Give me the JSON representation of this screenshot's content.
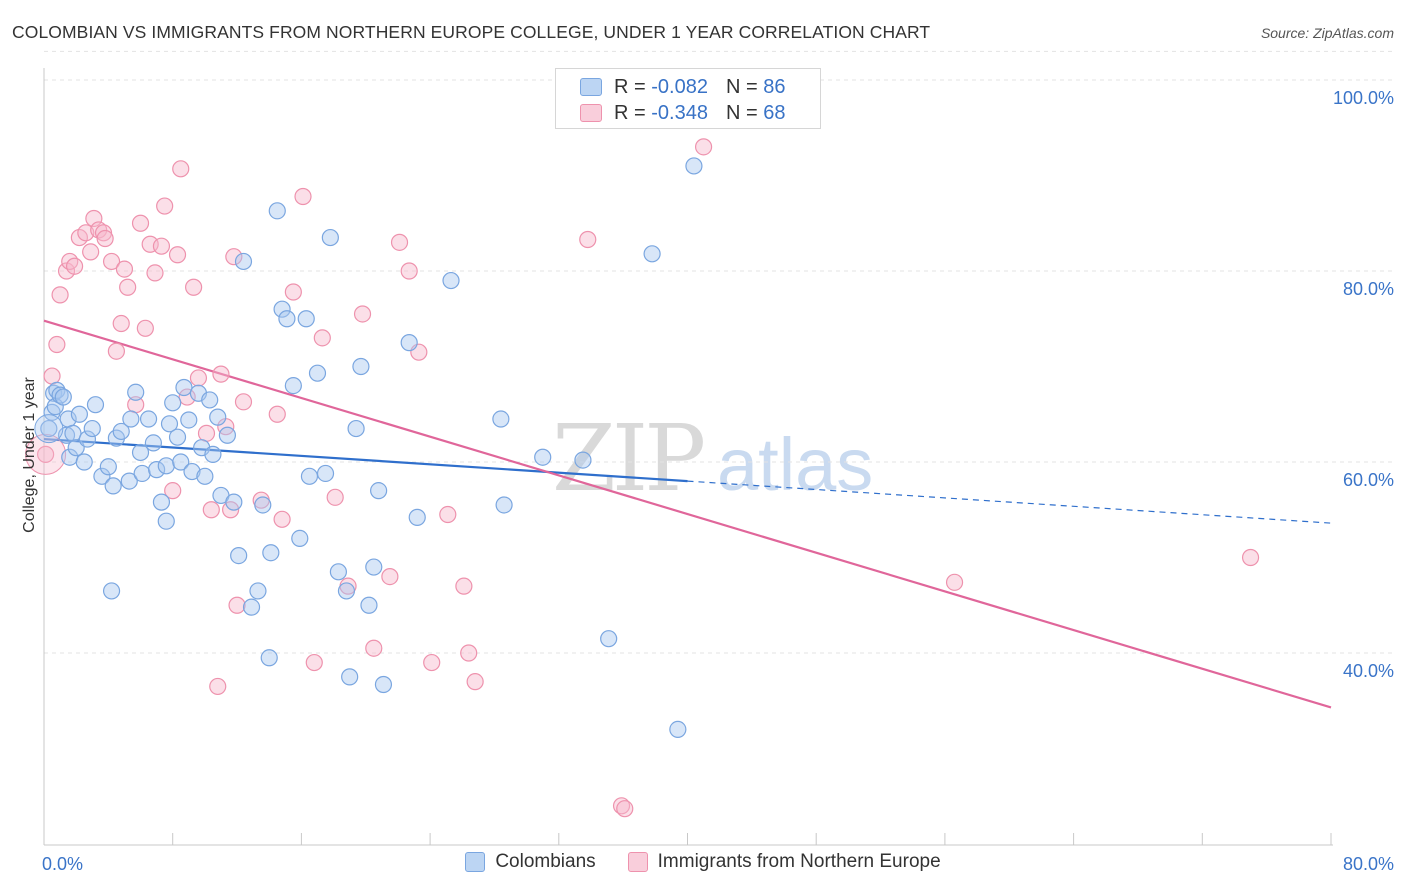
{
  "title": "COLOMBIAN VS IMMIGRANTS FROM NORTHERN EUROPE COLLEGE, UNDER 1 YEAR CORRELATION CHART",
  "source": "Source: ZipAtlas.com",
  "watermark": {
    "zip": "ZIP",
    "atlas": "atlas"
  },
  "legend": {
    "r_label": "R =",
    "n_label": "N =",
    "rows": [
      {
        "r": "-0.082",
        "n": "86"
      },
      {
        "r": "-0.348",
        "n": "68"
      }
    ]
  },
  "colors": {
    "blue_fill": "#a9c8f0",
    "blue_stroke": "#7aa6e0",
    "blue_line": "#2f6fcc",
    "pink_fill": "#f6b8cb",
    "pink_stroke": "#ee92ad",
    "pink_line": "#e0669a",
    "axis_text": "#3a74c8"
  },
  "chart_data": {
    "type": "scatter",
    "title": "COLOMBIAN VS IMMIGRANTS FROM NORTHERN EUROPE COLLEGE, UNDER 1 YEAR CORRELATION CHART",
    "xlabel": "",
    "ylabel": "College, Under 1 year",
    "xlim": [
      0,
      80
    ],
    "ylim": [
      18,
      103
    ],
    "x_tick_labels": [
      "0.0%",
      "80.0%"
    ],
    "y_ticks": [
      40,
      60,
      80,
      100
    ],
    "y_tick_labels": [
      "40.0%",
      "60.0%",
      "80.0%",
      "100.0%"
    ],
    "grid": "horizontal dashed",
    "legend_position": "top-center and bottom",
    "series": [
      {
        "name": "Colombians",
        "r": -0.082,
        "n": 86,
        "trend": {
          "x": [
            0,
            40,
            80
          ],
          "y": [
            62.4,
            58.0,
            53.6
          ]
        },
        "points": [
          [
            0.3,
            63.5
          ],
          [
            0.5,
            65.2
          ],
          [
            0.6,
            67.2
          ],
          [
            0.7,
            65.8
          ],
          [
            0.8,
            67.5
          ],
          [
            1.0,
            67.0
          ],
          [
            1.2,
            66.8
          ],
          [
            1.4,
            62.8
          ],
          [
            1.5,
            64.5
          ],
          [
            1.6,
            60.5
          ],
          [
            1.8,
            63.0
          ],
          [
            2.0,
            61.5
          ],
          [
            2.2,
            65.0
          ],
          [
            2.5,
            60.0
          ],
          [
            2.7,
            62.4
          ],
          [
            3.0,
            63.5
          ],
          [
            3.2,
            66.0
          ],
          [
            3.6,
            58.5
          ],
          [
            4.0,
            59.5
          ],
          [
            4.3,
            57.5
          ],
          [
            4.5,
            62.5
          ],
          [
            4.8,
            63.2
          ],
          [
            5.3,
            58.0
          ],
          [
            5.4,
            64.5
          ],
          [
            5.7,
            67.3
          ],
          [
            6.0,
            61.0
          ],
          [
            6.1,
            58.8
          ],
          [
            6.5,
            64.5
          ],
          [
            6.8,
            62.0
          ],
          [
            7.0,
            59.2
          ],
          [
            7.3,
            55.8
          ],
          [
            7.6,
            59.6
          ],
          [
            7.8,
            64.0
          ],
          [
            8.0,
            66.2
          ],
          [
            8.3,
            62.6
          ],
          [
            8.5,
            60.0
          ],
          [
            8.7,
            67.8
          ],
          [
            9.0,
            64.4
          ],
          [
            9.2,
            59.0
          ],
          [
            9.6,
            67.2
          ],
          [
            9.8,
            61.5
          ],
          [
            10.0,
            58.5
          ],
          [
            10.3,
            66.5
          ],
          [
            10.5,
            60.8
          ],
          [
            10.8,
            64.7
          ],
          [
            11.0,
            56.5
          ],
          [
            11.4,
            62.8
          ],
          [
            11.8,
            55.8
          ],
          [
            12.1,
            50.2
          ],
          [
            12.4,
            81.0
          ],
          [
            12.9,
            44.8
          ],
          [
            13.3,
            46.5
          ],
          [
            13.6,
            55.5
          ],
          [
            14.1,
            50.5
          ],
          [
            14.5,
            86.3
          ],
          [
            14.8,
            76.0
          ],
          [
            15.1,
            75.0
          ],
          [
            15.5,
            68.0
          ],
          [
            15.9,
            52.0
          ],
          [
            16.3,
            75.0
          ],
          [
            16.5,
            58.5
          ],
          [
            17.0,
            69.3
          ],
          [
            17.5,
            58.8
          ],
          [
            17.8,
            83.5
          ],
          [
            18.3,
            48.5
          ],
          [
            18.8,
            46.5
          ],
          [
            19.0,
            37.5
          ],
          [
            19.4,
            63.5
          ],
          [
            19.7,
            70.0
          ],
          [
            20.2,
            45.0
          ],
          [
            20.5,
            49.0
          ],
          [
            20.8,
            57.0
          ],
          [
            21.1,
            36.7
          ],
          [
            22.7,
            72.5
          ],
          [
            23.2,
            54.2
          ],
          [
            25.3,
            79.0
          ],
          [
            28.4,
            64.5
          ],
          [
            28.6,
            55.5
          ],
          [
            31.0,
            60.5
          ],
          [
            33.5,
            60.2
          ],
          [
            35.1,
            41.5
          ],
          [
            37.8,
            81.8
          ],
          [
            39.4,
            32.0
          ],
          [
            40.4,
            91.0
          ],
          [
            7.6,
            53.8
          ],
          [
            4.2,
            46.5
          ],
          [
            14.0,
            39.5
          ]
        ]
      },
      {
        "name": "Immigrants from Northern Europe",
        "r": -0.348,
        "n": 68,
        "trend": {
          "x": [
            0,
            80
          ],
          "y": [
            74.8,
            34.3
          ]
        },
        "points": [
          [
            0.1,
            60.8
          ],
          [
            0.5,
            69.0
          ],
          [
            0.8,
            72.3
          ],
          [
            1.0,
            77.5
          ],
          [
            1.4,
            80.0
          ],
          [
            1.6,
            81.0
          ],
          [
            1.9,
            80.5
          ],
          [
            2.2,
            83.5
          ],
          [
            2.6,
            84.0
          ],
          [
            2.9,
            82.0
          ],
          [
            3.1,
            85.5
          ],
          [
            3.4,
            84.3
          ],
          [
            3.7,
            84.0
          ],
          [
            3.8,
            83.4
          ],
          [
            4.2,
            81.0
          ],
          [
            4.5,
            71.6
          ],
          [
            4.8,
            74.5
          ],
          [
            5.0,
            80.2
          ],
          [
            5.2,
            78.3
          ],
          [
            5.7,
            66.0
          ],
          [
            6.0,
            85.0
          ],
          [
            6.3,
            74.0
          ],
          [
            6.6,
            82.8
          ],
          [
            6.9,
            79.8
          ],
          [
            7.3,
            82.6
          ],
          [
            7.5,
            86.8
          ],
          [
            8.0,
            57.0
          ],
          [
            8.3,
            81.7
          ],
          [
            8.5,
            90.7
          ],
          [
            8.9,
            66.8
          ],
          [
            9.3,
            78.3
          ],
          [
            9.6,
            68.8
          ],
          [
            10.1,
            63.0
          ],
          [
            10.4,
            55.0
          ],
          [
            10.8,
            36.5
          ],
          [
            11.0,
            69.2
          ],
          [
            11.3,
            63.7
          ],
          [
            11.6,
            55.0
          ],
          [
            11.8,
            81.5
          ],
          [
            12.0,
            45.0
          ],
          [
            12.4,
            66.3
          ],
          [
            13.5,
            56.0
          ],
          [
            14.5,
            65.0
          ],
          [
            14.8,
            54.0
          ],
          [
            15.5,
            77.8
          ],
          [
            16.1,
            87.8
          ],
          [
            16.8,
            39.0
          ],
          [
            17.3,
            73.0
          ],
          [
            18.1,
            56.3
          ],
          [
            18.9,
            47.0
          ],
          [
            19.8,
            75.5
          ],
          [
            20.5,
            40.5
          ],
          [
            21.5,
            48.0
          ],
          [
            22.1,
            83.0
          ],
          [
            22.7,
            80.0
          ],
          [
            23.3,
            71.5
          ],
          [
            24.1,
            39.0
          ],
          [
            25.1,
            54.5
          ],
          [
            26.1,
            47.0
          ],
          [
            26.4,
            40.0
          ],
          [
            26.8,
            37.0
          ],
          [
            33.8,
            83.3
          ],
          [
            35.9,
            24.0
          ],
          [
            36.1,
            23.7
          ],
          [
            37.1,
            100.0
          ],
          [
            41.0,
            93.0
          ],
          [
            56.6,
            47.4
          ],
          [
            75.0,
            50.0
          ]
        ]
      }
    ]
  },
  "bottom_legend": [
    "Colombians",
    "Immigrants from Northern Europe"
  ]
}
